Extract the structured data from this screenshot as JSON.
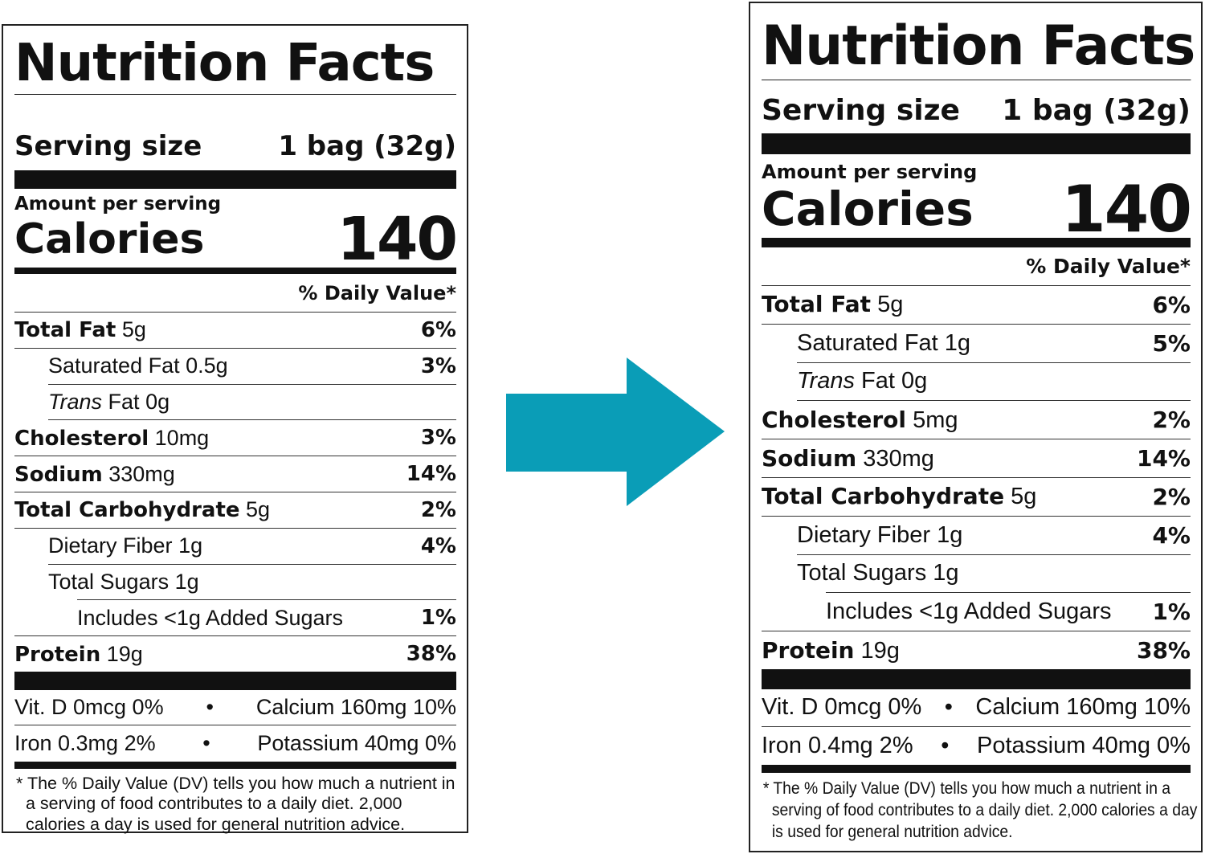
{
  "arrow_color": "#0A9DB7",
  "labels": [
    {
      "title": "Nutrition Facts",
      "serving_label": "Serving size",
      "serving_value": "1 bag (32g)",
      "amount_per_serving": "Amount per serving",
      "calories_label": "Calories",
      "calories_value": "140",
      "dv_header": "% Daily Value*",
      "nutrients": [
        {
          "name": "Total Fat",
          "amount": "5g",
          "dv": "6%",
          "bold": true,
          "indent": 0
        },
        {
          "name": "Saturated Fat",
          "amount": "0.5g",
          "dv": "3%",
          "bold": false,
          "indent": 1
        },
        {
          "name_italic": "Trans",
          "name": "Fat",
          "amount": "0g",
          "dv": "",
          "bold": false,
          "indent": 1
        },
        {
          "name": "Cholesterol",
          "amount": "10mg",
          "dv": "3%",
          "bold": true,
          "indent": 0
        },
        {
          "name": "Sodium",
          "amount": "330mg",
          "dv": "14%",
          "bold": true,
          "indent": 0
        },
        {
          "name": "Total Carbohydrate",
          "amount": "5g",
          "dv": "2%",
          "bold": true,
          "indent": 0
        },
        {
          "name": "Dietary Fiber",
          "amount": "1g",
          "dv": "4%",
          "bold": false,
          "indent": 1
        },
        {
          "name": "Total Sugars",
          "amount": "1g",
          "dv": "",
          "bold": false,
          "indent": 1
        },
        {
          "name": "Includes <1g Added Sugars",
          "amount": "",
          "dv": "1%",
          "bold": false,
          "indent": 2
        },
        {
          "name": "Protein",
          "amount": "19g",
          "dv": "38%",
          "bold": true,
          "indent": 0
        }
      ],
      "vitamins": [
        {
          "left": "Vit. D 0mcg 0%",
          "bullet": "•",
          "right": "Calcium 160mg 10%"
        },
        {
          "left": "Iron 0.3mg 2%",
          "bullet": "•",
          "right": "Potassium 40mg 0%"
        }
      ],
      "footnote": "* The % Daily Value (DV) tells you how much a nutrient in a serving of food contributes to a daily diet. 2,000 calories a day is used for general nutrition advice."
    },
    {
      "title": "Nutrition Facts",
      "serving_label": "Serving size",
      "serving_value": "1 bag (32g)",
      "amount_per_serving": "Amount per serving",
      "calories_label": "Calories",
      "calories_value": "140",
      "dv_header": "% Daily Value*",
      "nutrients": [
        {
          "name": "Total Fat",
          "amount": "5g",
          "dv": "6%",
          "bold": true,
          "indent": 0
        },
        {
          "name": "Saturated Fat",
          "amount": "1g",
          "dv": "5%",
          "bold": false,
          "indent": 1
        },
        {
          "name_italic": "Trans",
          "name": "Fat",
          "amount": "0g",
          "dv": "",
          "bold": false,
          "indent": 1
        },
        {
          "name": "Cholesterol",
          "amount": "5mg",
          "dv": "2%",
          "bold": true,
          "indent": 0
        },
        {
          "name": "Sodium",
          "amount": "330mg",
          "dv": "14%",
          "bold": true,
          "indent": 0
        },
        {
          "name": "Total Carbohydrate",
          "amount": "5g",
          "dv": "2%",
          "bold": true,
          "indent": 0
        },
        {
          "name": "Dietary Fiber",
          "amount": "1g",
          "dv": "4%",
          "bold": false,
          "indent": 1
        },
        {
          "name": "Total Sugars",
          "amount": "1g",
          "dv": "",
          "bold": false,
          "indent": 1
        },
        {
          "name": "Includes <1g Added Sugars",
          "amount": "",
          "dv": "1%",
          "bold": false,
          "indent": 2
        },
        {
          "name": "Protein",
          "amount": "19g",
          "dv": "38%",
          "bold": true,
          "indent": 0
        }
      ],
      "vitamins": [
        {
          "left": "Vit. D 0mcg 0%",
          "bullet": "•",
          "right": "Calcium 160mg 10%"
        },
        {
          "left": "Iron 0.4mg 2%",
          "bullet": "•",
          "right": "Potassium 40mg 0%"
        }
      ],
      "footnote": "* The % Daily Value (DV) tells you how much a nutrient in a serving of food contributes to a daily diet. 2,000 calories a day is used for general nutrition advice."
    }
  ]
}
